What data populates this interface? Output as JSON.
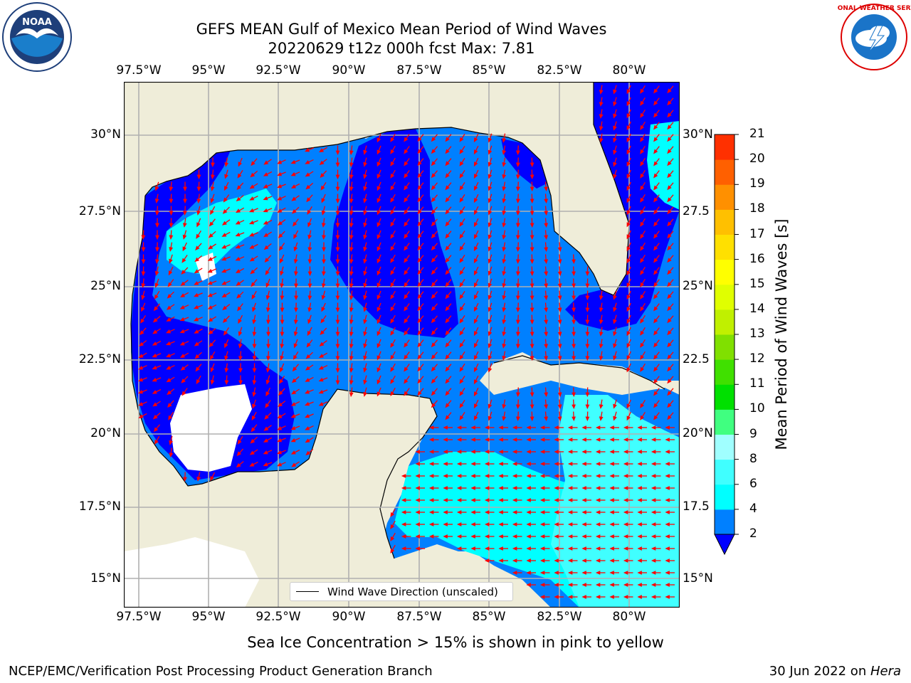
{
  "header": {
    "title_line1": "GEFS MEAN Gulf of Mexico Mean Period of Wind Waves",
    "title_line2": "20220629 t12z 000h fcst   Max: 7.81"
  },
  "logos": {
    "left": "NOAA",
    "right_text": "NATIONAL WEATHER SERVICE"
  },
  "map": {
    "lon_ticks": [
      "97.5°W",
      "95°W",
      "92.5°W",
      "90°W",
      "87.5°W",
      "85°W",
      "82.5°W",
      "80°W"
    ],
    "lat_ticks_left": [
      "30°N",
      "27.5°N",
      "25°N",
      "22.5°N",
      "20°N",
      "17.5°N",
      "15°N"
    ],
    "lat_ticks_right": [
      "30°N",
      "27.5",
      "25°N",
      "22.5",
      "20°N",
      "17.5",
      "15°N"
    ],
    "legend_label": "Wind Wave Direction (unscaled)",
    "colors": {
      "land": "#efedd9",
      "no_data": "#ffffff",
      "grid": "#b0b0b0",
      "arrow": "#ff0000"
    }
  },
  "colorbar": {
    "label": "Mean Period of Wind Waves [s]",
    "ticks": [
      "2",
      "4",
      "6",
      "8",
      "9",
      "10",
      "11",
      "12",
      "13",
      "14",
      "15",
      "16",
      "17",
      "18",
      "19",
      "20",
      "21"
    ],
    "under_color": "#0000ff",
    "colors": [
      "#0080ff",
      "#00ffff",
      "#40ffff",
      "#a0ffff",
      "#40ff80",
      "#00e000",
      "#40e000",
      "#80e000",
      "#c0f000",
      "#e0ff00",
      "#ffff00",
      "#ffe000",
      "#ffc000",
      "#ff9000",
      "#ff6000",
      "#ff3000",
      "#ff0000"
    ]
  },
  "note": "Sea Ice Concentration > 15% is shown in pink to yellow",
  "footer": {
    "left": "NCEP/EMC/Verification Post Processing Product Generation Branch",
    "right_date": "30 Jun 2022 on ",
    "right_host": "Hera"
  }
}
